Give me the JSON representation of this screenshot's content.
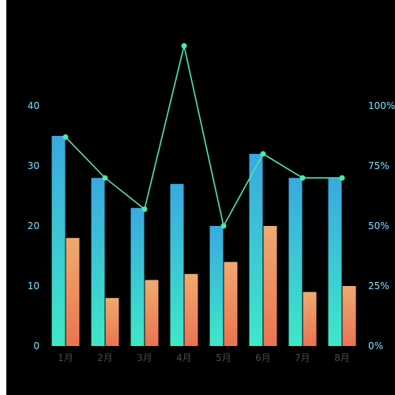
{
  "chart_data": {
    "type": "bar",
    "categories": [
      "1月",
      "2月",
      "3月",
      "4月",
      "5月",
      "6月",
      "7月",
      "8月"
    ],
    "series": [
      {
        "type": "bar",
        "values": [
          35,
          28,
          23,
          27,
          20,
          32,
          28,
          28
        ],
        "gradient": [
          "#3aa8e0",
          "#3ee8c8"
        ]
      },
      {
        "type": "bar",
        "values": [
          18,
          8,
          11,
          12,
          14,
          20,
          9,
          10
        ],
        "gradient": [
          "#f0aa70",
          "#ea7452"
        ]
      },
      {
        "type": "line",
        "axis": "right",
        "values": [
          87,
          70,
          57,
          125,
          50,
          80,
          70,
          70
        ],
        "color": "#4de8b0"
      }
    ],
    "ylim_left": [
      0,
      40
    ],
    "yticks_left": [
      "0",
      "10",
      "20",
      "30",
      "40"
    ],
    "ylim_right": [
      0,
      100
    ],
    "yticks_right": [
      "0%",
      "25%",
      "50%",
      "75%",
      "100%"
    ],
    "grid": false,
    "background": "#000000"
  }
}
